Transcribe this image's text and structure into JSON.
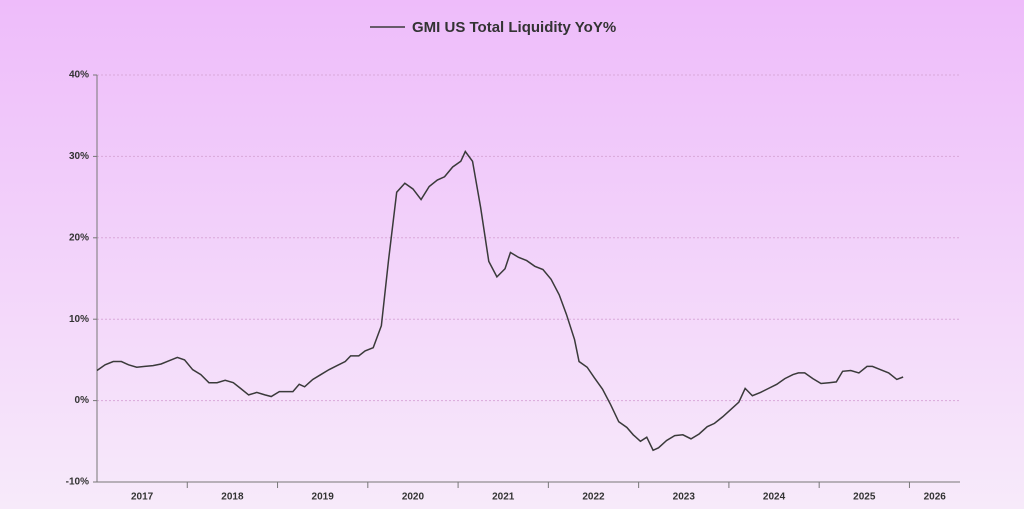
{
  "chart_data": {
    "type": "line",
    "x": [
      2017.0,
      2017.09,
      2017.18,
      2017.27,
      2017.35,
      2017.44,
      2017.53,
      2017.62,
      2017.71,
      2017.8,
      2017.89,
      2017.97,
      2018.06,
      2018.15,
      2018.24,
      2018.33,
      2018.42,
      2018.51,
      2018.59,
      2018.68,
      2018.77,
      2018.86,
      2018.93,
      2019.02,
      2019.1,
      2019.17,
      2019.24,
      2019.3,
      2019.39,
      2019.48,
      2019.57,
      2019.66,
      2019.75,
      2019.81,
      2019.9,
      2019.97,
      2020.06,
      2020.15,
      2020.23,
      2020.32,
      2020.41,
      2020.5,
      2020.59,
      2020.68,
      2020.77,
      2020.85,
      2020.94,
      2021.03,
      2021.08,
      2021.16,
      2021.25,
      2021.34,
      2021.43,
      2021.52,
      2021.58,
      2021.67,
      2021.76,
      2021.85,
      2021.94,
      2022.03,
      2022.12,
      2022.2,
      2022.29,
      2022.34,
      2022.43,
      2022.51,
      2022.6,
      2022.69,
      2022.78,
      2022.87,
      2022.94,
      2023.02,
      2023.09,
      2023.16,
      2023.22,
      2023.31,
      2023.4,
      2023.49,
      2023.58,
      2023.67,
      2023.76,
      2023.84,
      2023.93,
      2024.02,
      2024.11,
      2024.18,
      2024.26,
      2024.35,
      2024.44,
      2024.53,
      2024.62,
      2024.71,
      2024.77,
      2024.84,
      2024.93,
      2025.02,
      2025.11,
      2025.19,
      2025.26,
      2025.35,
      2025.44,
      2025.53,
      2025.59,
      2025.68,
      2025.77,
      2025.86,
      2025.93
    ],
    "series": [
      {
        "name": "GMI US Total Liquidity YoY%",
        "color": "#3a3a3a",
        "values": [
          3.7,
          4.4,
          4.8,
          4.8,
          4.4,
          4.1,
          4.2,
          4.3,
          4.5,
          4.9,
          5.3,
          5.0,
          3.8,
          3.2,
          2.2,
          2.2,
          2.5,
          2.2,
          1.5,
          0.7,
          1.0,
          0.7,
          0.5,
          1.1,
          1.1,
          1.1,
          2.0,
          1.7,
          2.6,
          3.2,
          3.8,
          4.3,
          4.8,
          5.5,
          5.5,
          6.1,
          6.5,
          9.2,
          17.3,
          25.6,
          26.7,
          26.0,
          24.7,
          26.3,
          27.1,
          27.5,
          28.7,
          29.4,
          30.6,
          29.4,
          23.7,
          17.1,
          15.2,
          16.2,
          18.2,
          17.6,
          17.2,
          16.5,
          16.1,
          14.9,
          13.0,
          10.6,
          7.5,
          4.8,
          4.1,
          2.8,
          1.4,
          -0.5,
          -2.6,
          -3.3,
          -4.2,
          -5.0,
          -4.5,
          -6.1,
          -5.8,
          -4.9,
          -4.3,
          -4.2,
          -4.7,
          -4.1,
          -3.2,
          -2.8,
          -2.0,
          -1.1,
          -0.2,
          1.5,
          0.6,
          1.0,
          1.5,
          2.0,
          2.7,
          3.2,
          3.4,
          3.4,
          2.7,
          2.1,
          2.2,
          2.3,
          3.6,
          3.7,
          3.4,
          4.2,
          4.2,
          3.8,
          3.4,
          2.6,
          2.9
        ]
      }
    ],
    "xlim": [
      2017,
      2026.56
    ],
    "xticks": [
      2017,
      2018,
      2019,
      2020,
      2021,
      2022,
      2023,
      2024,
      2025,
      2026
    ],
    "ylim": [
      -10,
      40
    ],
    "yticks": [
      {
        "value": -10,
        "label": "-10%"
      },
      {
        "value": 0,
        "label": "0%"
      },
      {
        "value": 10,
        "label": "10%"
      },
      {
        "value": 20,
        "label": "20%"
      },
      {
        "value": 30,
        "label": "30%"
      },
      {
        "value": 40,
        "label": "40%"
      }
    ],
    "grid": true
  }
}
